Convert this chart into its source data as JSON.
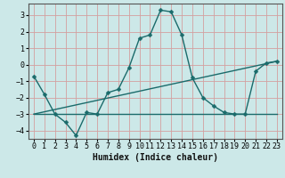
{
  "title": "",
  "xlabel": "Humidex (Indice chaleur)",
  "ylabel": "",
  "bg_color": "#cce8e8",
  "grid_color": "#d4a0a0",
  "line_color": "#1a6b6b",
  "xlim": [
    -0.5,
    23.5
  ],
  "ylim": [
    -4.5,
    3.7
  ],
  "yticks": [
    -4,
    -3,
    -2,
    -1,
    0,
    1,
    2,
    3
  ],
  "xticks": [
    0,
    1,
    2,
    3,
    4,
    5,
    6,
    7,
    8,
    9,
    10,
    11,
    12,
    13,
    14,
    15,
    16,
    17,
    18,
    19,
    20,
    21,
    22,
    23
  ],
  "line1_x": [
    0,
    1,
    2,
    3,
    4,
    5,
    6,
    7,
    8,
    9,
    10,
    11,
    12,
    13,
    14,
    15,
    16,
    17,
    18,
    19,
    20,
    21,
    22,
    23
  ],
  "line1_y": [
    -0.7,
    -1.8,
    -3.0,
    -3.5,
    -4.3,
    -2.9,
    -3.0,
    -1.7,
    -1.5,
    -0.2,
    1.6,
    1.8,
    3.3,
    3.2,
    1.8,
    -0.8,
    -2.0,
    -2.5,
    -2.9,
    -3.0,
    -3.0,
    -0.4,
    0.1,
    0.2
  ],
  "line2_x": [
    0,
    23
  ],
  "line2_y": [
    -3.0,
    -3.0
  ],
  "line3_x": [
    0,
    23
  ],
  "line3_y": [
    -3.0,
    0.2
  ],
  "marker_size": 2.5,
  "line_width": 1.0,
  "xlabel_fontsize": 7,
  "tick_fontsize": 6
}
